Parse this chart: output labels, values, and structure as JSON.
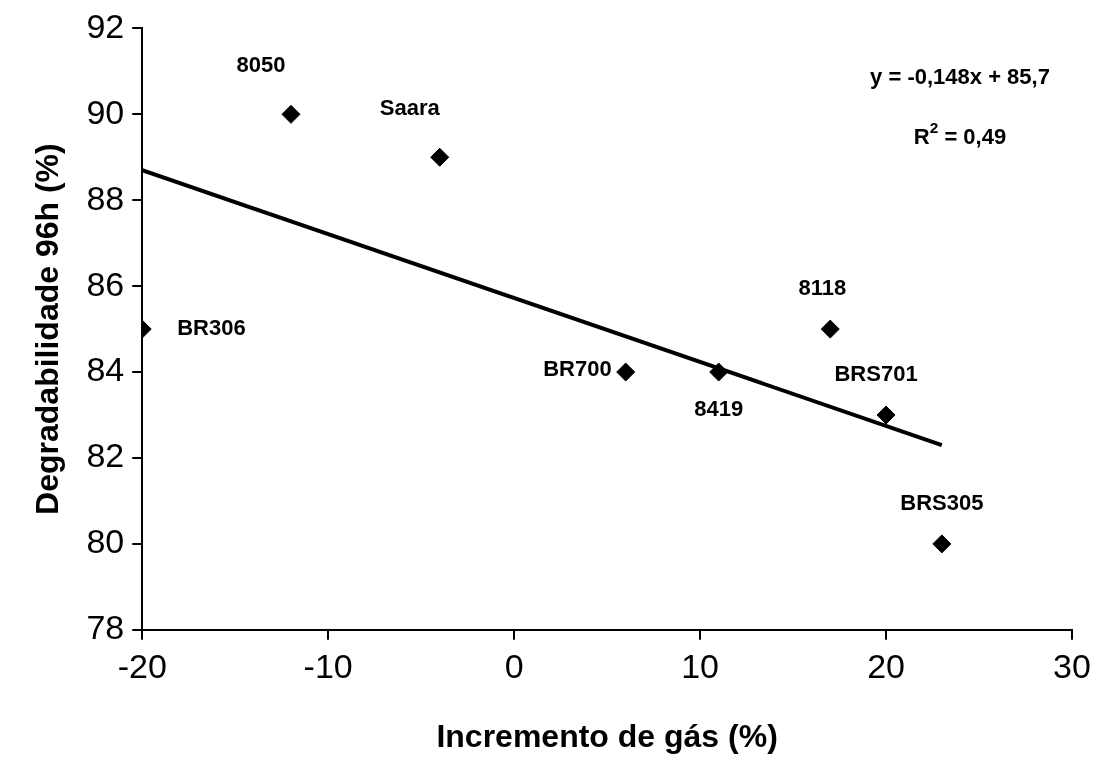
{
  "chart_data": {
    "type": "scatter",
    "xlabel": "Incremento de gás (%)",
    "ylabel": "Degradabilidade 96h (%)",
    "xlim": [
      -20,
      30
    ],
    "xticks": [
      -20,
      -10,
      0,
      10,
      20,
      30
    ],
    "ylim": [
      78,
      92
    ],
    "yticks": [
      78,
      80,
      82,
      84,
      86,
      88,
      90,
      92
    ],
    "grid": false,
    "legend": false,
    "marker": "diamond",
    "series": [
      {
        "color": "#000000",
        "x": [
          -20,
          -12,
          -4,
          6,
          11,
          17,
          20,
          23
        ],
        "values": [
          85,
          90,
          89,
          84,
          84,
          85,
          83,
          80
        ]
      },
      {
        "type": "line",
        "color": "#000000",
        "marker": "none",
        "line_style": "solid",
        "x": [
          -20,
          23
        ],
        "values": [
          88.7,
          82.3
        ]
      }
    ],
    "annotations": [
      {
        "text": "BR306",
        "x": -20,
        "y": 85
      },
      {
        "text": "8050",
        "x": -12,
        "y": 90
      },
      {
        "text": "Saara",
        "x": -4,
        "y": 89
      },
      {
        "text": "BR700",
        "x": 6,
        "y": 84
      },
      {
        "text": "8419",
        "x": 11,
        "y": 84
      },
      {
        "text": "8118",
        "x": 17,
        "y": 85
      },
      {
        "text": "BRS701",
        "x": 20,
        "y": 83
      },
      {
        "text": "BRS305",
        "x": 23,
        "y": 80
      },
      "y = -0,148x + 85,7",
      "R$^{2}$ = 0,49"
    ]
  }
}
